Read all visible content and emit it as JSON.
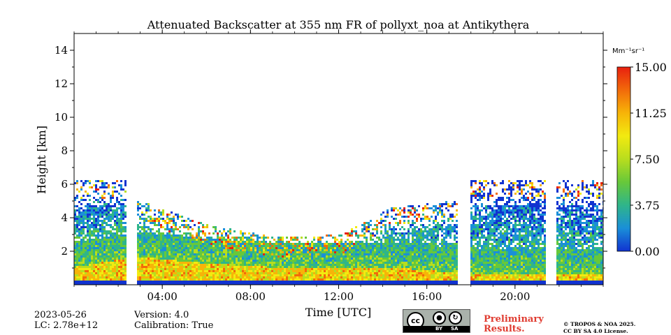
{
  "chart_data": {
    "type": "heatmap",
    "title": "Attenuated Backscatter at 355 nm FR of pollyxt_noa at Antikythera",
    "xlabel": "Time [UTC]",
    "ylabel": "Height [km]",
    "xlim": [
      0,
      24
    ],
    "ylim": [
      0,
      15
    ],
    "x_ticks": [
      4,
      8,
      12,
      16,
      20
    ],
    "x_tick_labels": [
      "04:00",
      "08:00",
      "12:00",
      "16:00",
      "20:00"
    ],
    "y_ticks": [
      2,
      4,
      6,
      8,
      10,
      12,
      14
    ],
    "y_tick_labels": [
      "2",
      "4",
      "6",
      "8",
      "10",
      "12",
      "14"
    ],
    "colorbar": {
      "unit_label": "Mm⁻¹sr⁻¹",
      "min": 0,
      "max": 15,
      "ticks": [
        0,
        3.75,
        7.5,
        11.25,
        15
      ],
      "tick_labels": [
        "0.00",
        "3.75",
        "7.50",
        "11.25",
        "15.00"
      ],
      "colors": [
        "#1133d0",
        "#1a8fd8",
        "#2fb58a",
        "#67c83a",
        "#b8dd1e",
        "#f2ea10",
        "#f7b408",
        "#f26a0a",
        "#e8200f"
      ]
    },
    "data_gaps_hours": [
      [
        2.35,
        2.8
      ],
      [
        17.4,
        17.9
      ],
      [
        21.35,
        21.85
      ]
    ],
    "layer_top_km": [
      [
        0,
        6.2
      ],
      [
        2.35,
        6.2
      ],
      [
        2.8,
        5.0
      ],
      [
        6,
        3.5
      ],
      [
        9,
        2.8
      ],
      [
        12,
        2.9
      ],
      [
        14.3,
        4.5
      ],
      [
        17.4,
        5.0
      ],
      [
        17.9,
        6.2
      ],
      [
        24,
        6.2
      ]
    ],
    "aerosol_layer_top_km": [
      [
        0,
        1.0
      ],
      [
        2.8,
        1.6
      ],
      [
        6,
        1.2
      ],
      [
        10,
        0.9
      ],
      [
        14,
        1.0
      ],
      [
        17.9,
        0.6
      ],
      [
        24,
        0.5
      ]
    ]
  },
  "footer": {
    "date": "2023-05-26",
    "lc": "LC: 2.78e+12",
    "version": "Version: 4.0",
    "calibration": "Calibration: True",
    "preliminary_line1": "Preliminary",
    "preliminary_line2": "Results.",
    "license_line1": "© TROPOS & NOA 2025.",
    "license_line2": "CC BY SA 4.0 License.",
    "cc_badge": {
      "by": "BY",
      "sa": "SA",
      "cc": "cc"
    }
  }
}
